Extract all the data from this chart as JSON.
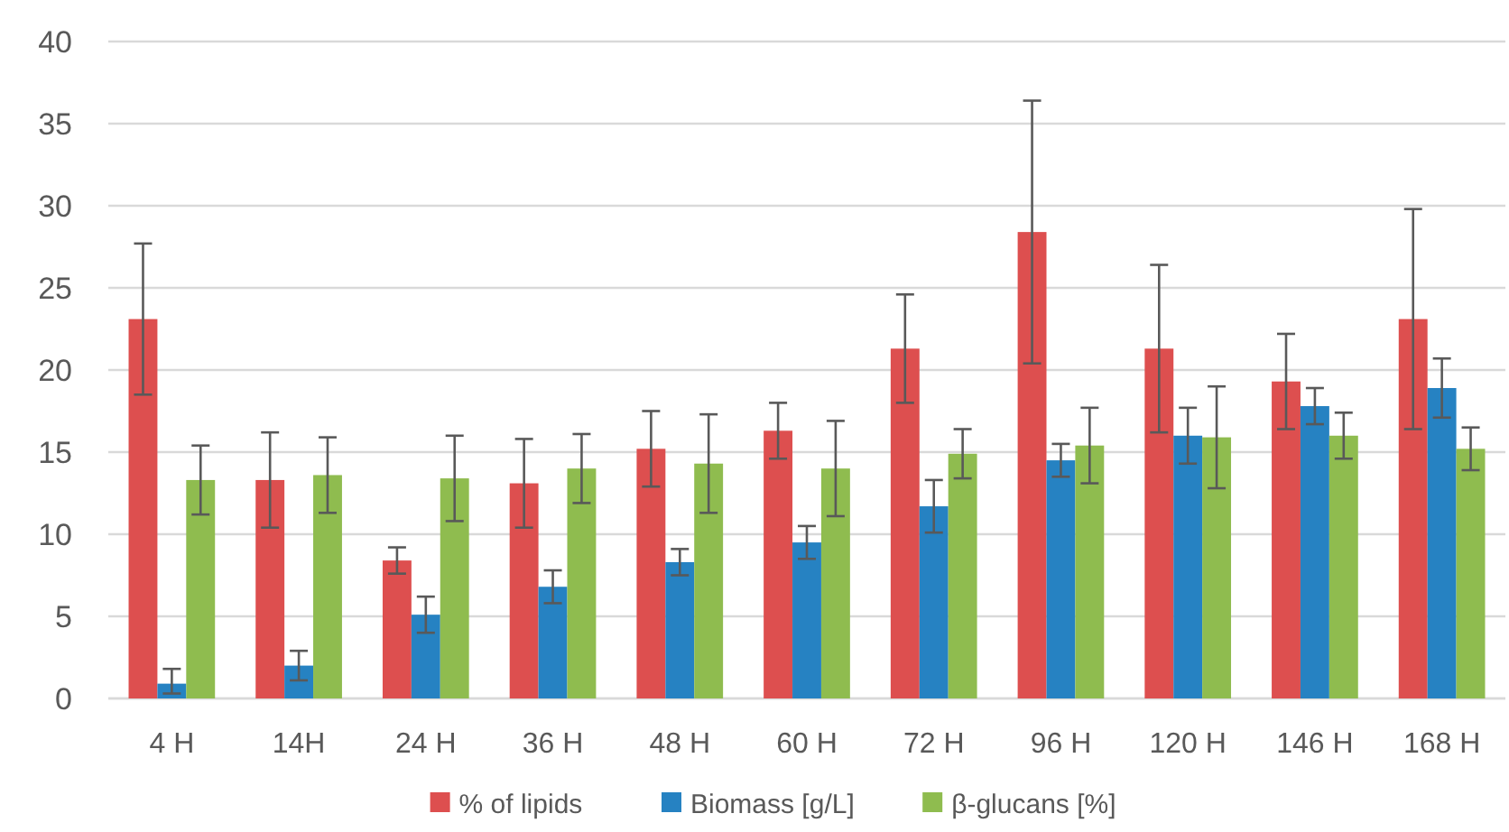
{
  "chart_data": {
    "type": "bar",
    "categories": [
      "4 H",
      "14H",
      "24 H",
      "36 H",
      "48 H",
      "60 H",
      "72 H",
      "96 H",
      "120 H",
      "146 H",
      "168 H"
    ],
    "series": [
      {
        "name": "% of lipids",
        "color": "#dd4f4f",
        "values": [
          23.1,
          13.3,
          8.4,
          13.1,
          15.2,
          16.3,
          21.3,
          28.4,
          21.3,
          19.3,
          23.1
        ],
        "errors": [
          4.6,
          2.9,
          0.8,
          2.7,
          2.3,
          1.7,
          3.3,
          8.0,
          5.1,
          2.9,
          6.7
        ]
      },
      {
        "name": "Biomass [g/L]",
        "color": "#2682c2",
        "values": [
          0.9,
          2.0,
          5.1,
          6.8,
          8.3,
          9.5,
          11.7,
          14.5,
          16.0,
          17.8,
          18.9
        ],
        "errors": [
          [
            0.3,
            1.8
          ],
          0.9,
          1.1,
          1.0,
          0.8,
          1.0,
          1.6,
          1.0,
          1.7,
          1.1,
          1.8
        ]
      },
      {
        "name": "β-glucans [%]",
        "color": "#8fbc4f",
        "values": [
          13.3,
          13.6,
          13.4,
          14.0,
          14.3,
          14.0,
          14.9,
          15.4,
          15.9,
          16.0,
          15.2
        ],
        "errors": [
          2.1,
          2.3,
          2.6,
          2.1,
          3.0,
          2.9,
          1.5,
          2.3,
          3.1,
          1.4,
          1.3
        ]
      }
    ],
    "ylim": [
      0,
      40
    ],
    "yticks": [
      0,
      5,
      10,
      15,
      20,
      25,
      30,
      35,
      40
    ],
    "grid": "y",
    "legend": "bottom"
  }
}
